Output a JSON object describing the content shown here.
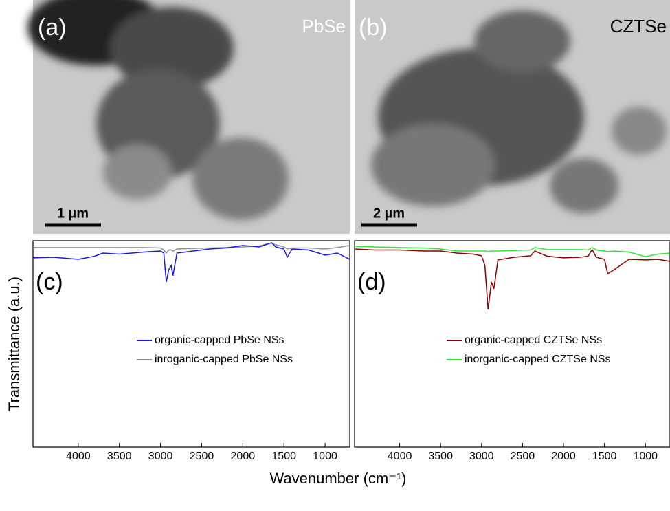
{
  "images": [
    {
      "label": "(a)",
      "sample": "PbSe",
      "scale_bar": "1 µm"
    },
    {
      "label": "(b)",
      "sample": "CZTSe",
      "scale_bar": "2 µm"
    }
  ],
  "ylabel": "Transmittance (a.u.)",
  "xlabel": "Wavenumber (cm⁻¹)",
  "chart_data": [
    {
      "type": "line",
      "panel_label": "(c)",
      "legend": "center right",
      "x": [
        4550,
        4300,
        4000,
        3800,
        3700,
        3500,
        3200,
        3000,
        2960,
        2930,
        2900,
        2870,
        2850,
        2800,
        2600,
        2400,
        2200,
        2000,
        1800,
        1650,
        1600,
        1500,
        1460,
        1400,
        1200,
        1000,
        850,
        700
      ],
      "series": [
        {
          "name": "organic-capped PbSe NSs",
          "color": "#1a1adb",
          "values": [
            91.7,
            92,
            91,
            92.5,
            94,
            93.5,
            94.5,
            95,
            94,
            80,
            86,
            88,
            83,
            94,
            95,
            96,
            96.5,
            97.7,
            97,
            99,
            97,
            96,
            92,
            96,
            95.5,
            93,
            94,
            91
          ]
        },
        {
          "name": "inroganic-capped PbSe NSs",
          "color": "#909090",
          "values": [
            96.7,
            96.7,
            96.7,
            96.7,
            96.7,
            96.7,
            96.7,
            96.5,
            95.5,
            94,
            95.5,
            95.5,
            95,
            96,
            96.3,
            96.5,
            96.7,
            97,
            97.5,
            99,
            98,
            97,
            96,
            96.5,
            96.5,
            96,
            96.7,
            97.7
          ]
        }
      ],
      "xlim": [
        4550,
        700
      ],
      "xticks": [
        4000,
        3500,
        3000,
        2500,
        2000,
        1500,
        1000
      ],
      "ylim": [
        0,
        100
      ]
    },
    {
      "type": "line",
      "panel_label": "(d)",
      "legend": "center right",
      "x": [
        4550,
        4300,
        4000,
        3700,
        3500,
        3300,
        3100,
        3000,
        2960,
        2920,
        2880,
        2850,
        2800,
        2600,
        2400,
        2350,
        2200,
        2000,
        1800,
        1700,
        1650,
        1600,
        1500,
        1460,
        1380,
        1200,
        1000,
        850,
        700
      ],
      "series": [
        {
          "name": "organic-capped CZTSe NSs",
          "color": "#8b0000",
          "values": [
            96,
            95.5,
            95.5,
            95,
            95,
            94,
            93.5,
            92.7,
            88,
            66.7,
            80,
            76.7,
            90.7,
            92,
            92.7,
            95,
            92.5,
            91.7,
            92,
            92.5,
            95.7,
            92,
            91,
            84,
            86,
            91,
            90.7,
            91,
            90
          ]
        },
        {
          "name": "inorganic-capped CZTSe NSs",
          "color": "#33e533",
          "values": [
            97.3,
            97,
            96.7,
            96.5,
            96,
            95,
            95,
            95,
            95,
            94.7,
            95,
            95,
            95,
            95.3,
            95.5,
            96.7,
            95.7,
            95.7,
            95.7,
            95.5,
            96.7,
            95.5,
            95,
            94.7,
            95,
            94.5,
            92.3,
            93.5,
            94
          ]
        }
      ],
      "xlim": [
        4550,
        700
      ],
      "xticks": [
        4000,
        3500,
        3000,
        2500,
        2000,
        1500,
        1000
      ],
      "ylim": [
        0,
        100
      ]
    }
  ]
}
